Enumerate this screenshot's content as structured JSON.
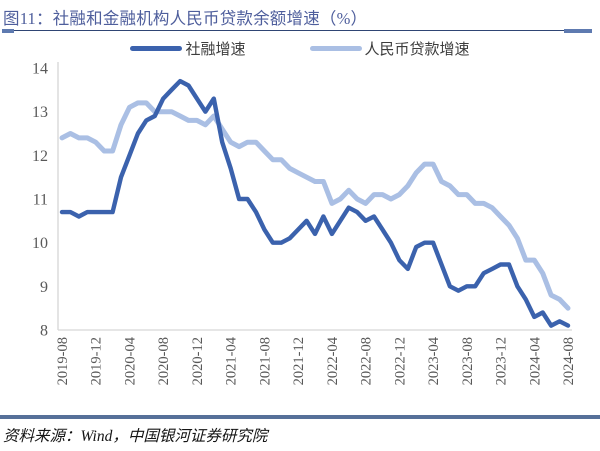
{
  "source_note": "资料来源：Wind，中国银河证券研究院",
  "colors": {
    "title": "#4e5e9c",
    "rule_thin": "#2f4574",
    "rule_caps": "#5e7ab0",
    "source_rule": "#567099",
    "axis": "#d6d6d6",
    "tick_text": "#595959"
  },
  "chart_data": {
    "type": "line",
    "title": "图11：社融和金融机构人民币贷款余额增速（%）",
    "xlabel": "",
    "ylabel": "",
    "ylim": [
      8,
      14
    ],
    "yticks": [
      8,
      9,
      10,
      11,
      12,
      13,
      14
    ],
    "grid": false,
    "legend_position": "top-center",
    "tick_every": 4,
    "x_monthly": [
      "2019-08",
      "2019-09",
      "2019-10",
      "2019-11",
      "2019-12",
      "2020-01",
      "2020-02",
      "2020-03",
      "2020-04",
      "2020-05",
      "2020-06",
      "2020-07",
      "2020-08",
      "2020-09",
      "2020-10",
      "2020-11",
      "2020-12",
      "2021-01",
      "2021-02",
      "2021-03",
      "2021-04",
      "2021-05",
      "2021-06",
      "2021-07",
      "2021-08",
      "2021-09",
      "2021-10",
      "2021-11",
      "2021-12",
      "2022-01",
      "2022-02",
      "2022-03",
      "2022-04",
      "2022-05",
      "2022-06",
      "2022-07",
      "2022-08",
      "2022-09",
      "2022-10",
      "2022-11",
      "2022-12",
      "2023-01",
      "2023-02",
      "2023-03",
      "2023-04",
      "2023-05",
      "2023-06",
      "2023-07",
      "2023-08",
      "2023-09",
      "2023-10",
      "2023-11",
      "2023-12",
      "2024-01",
      "2024-02",
      "2024-03",
      "2024-04",
      "2024-05",
      "2024-06",
      "2024-07",
      "2024-08"
    ],
    "series": [
      {
        "name": "社融增速",
        "color": "#3b62ad",
        "values": [
          10.7,
          10.7,
          10.6,
          10.7,
          10.7,
          10.7,
          10.7,
          11.5,
          12.0,
          12.5,
          12.8,
          12.9,
          13.3,
          13.5,
          13.7,
          13.6,
          13.3,
          13.0,
          13.3,
          12.3,
          11.7,
          11.0,
          11.0,
          10.7,
          10.3,
          10.0,
          10.0,
          10.1,
          10.3,
          10.5,
          10.2,
          10.6,
          10.2,
          10.5,
          10.8,
          10.7,
          10.5,
          10.6,
          10.3,
          10.0,
          9.6,
          9.4,
          9.9,
          10.0,
          10.0,
          9.5,
          9.0,
          8.9,
          9.0,
          9.0,
          9.3,
          9.4,
          9.5,
          9.5,
          9.0,
          8.7,
          8.3,
          8.4,
          8.1,
          8.2,
          8.1
        ]
      },
      {
        "name": "人民币贷款增速",
        "color": "#aabfe4",
        "values": [
          12.4,
          12.5,
          12.4,
          12.4,
          12.3,
          12.1,
          12.1,
          12.7,
          13.1,
          13.2,
          13.2,
          13.0,
          13.0,
          13.0,
          12.9,
          12.8,
          12.8,
          12.7,
          12.9,
          12.6,
          12.3,
          12.2,
          12.3,
          12.3,
          12.1,
          11.9,
          11.9,
          11.7,
          11.6,
          11.5,
          11.4,
          11.4,
          10.9,
          11.0,
          11.2,
          11.0,
          10.9,
          11.1,
          11.1,
          11.0,
          11.1,
          11.3,
          11.6,
          11.8,
          11.8,
          11.4,
          11.3,
          11.1,
          11.1,
          10.9,
          10.9,
          10.8,
          10.6,
          10.4,
          10.1,
          9.6,
          9.6,
          9.3,
          8.8,
          8.7,
          8.5
        ]
      }
    ]
  }
}
